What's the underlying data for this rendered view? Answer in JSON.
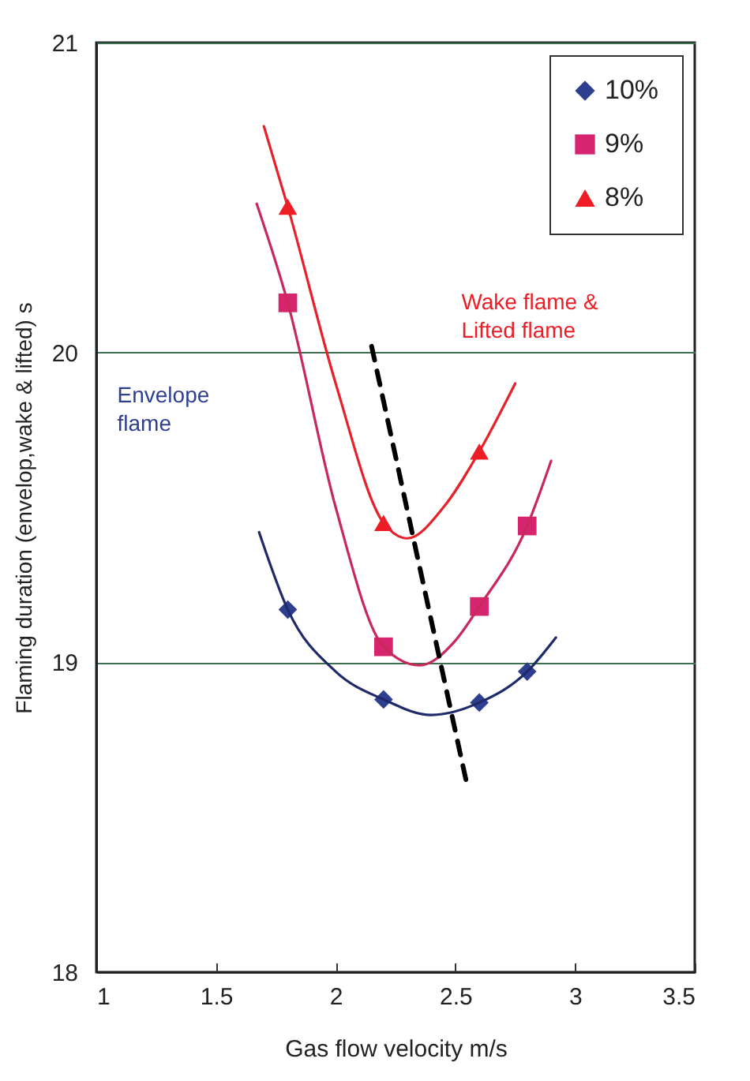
{
  "chart_data": {
    "type": "scatter",
    "xlabel": "Gas flow velocity  m/s",
    "ylabel": "Flaming duration (envelop,wake & lifted)  s",
    "xlim": [
      1,
      3.5
    ],
    "xticks": [
      1,
      1.5,
      2,
      2.5,
      3,
      3.5
    ],
    "ylim": [
      18,
      21
    ],
    "yticks": [
      18,
      19,
      20,
      21
    ],
    "grid": "y",
    "legend": "top right",
    "series": [
      {
        "name": "10%",
        "marker": "diamond",
        "color": "#2e3f8f",
        "x": [
          1.8,
          2.2,
          2.6,
          2.8
        ],
        "values": [
          19.17,
          18.88,
          18.87,
          18.97
        ]
      },
      {
        "name": "9%",
        "marker": "square",
        "color": "#d6246e",
        "x": [
          1.8,
          2.2,
          2.6,
          2.8
        ],
        "values": [
          20.16,
          19.05,
          19.18,
          19.44
        ]
      },
      {
        "name": "8%",
        "marker": "triangle",
        "color": "#ee1c24",
        "x": [
          1.8,
          2.2,
          2.6
        ],
        "values": [
          20.47,
          19.45,
          19.68
        ]
      },
      {
        "type": "line",
        "color": "#1f2a6b",
        "line_style": "solid",
        "x": [
          1.68,
          1.8,
          2.0,
          2.2,
          2.4,
          2.6,
          2.8,
          2.92
        ],
        "values": [
          19.42,
          19.17,
          18.97,
          18.88,
          18.83,
          18.87,
          18.97,
          19.08
        ]
      },
      {
        "type": "line",
        "color": "#c8285a",
        "line_style": "solid",
        "x": [
          1.67,
          1.8,
          2.0,
          2.2,
          2.35,
          2.5,
          2.6,
          2.8,
          2.9
        ],
        "values": [
          20.48,
          20.16,
          19.5,
          19.05,
          18.99,
          19.07,
          19.18,
          19.44,
          19.65
        ]
      },
      {
        "type": "line",
        "color": "#e8202a",
        "line_style": "solid",
        "x": [
          1.7,
          1.8,
          2.0,
          2.2,
          2.3,
          2.45,
          2.6,
          2.75
        ],
        "values": [
          20.73,
          20.47,
          19.9,
          19.45,
          19.4,
          19.5,
          19.68,
          19.9
        ]
      },
      {
        "type": "line",
        "color": "#000000",
        "line_style": "dashed",
        "x": [
          2.15,
          2.55
        ],
        "values": [
          20.02,
          18.6
        ]
      }
    ],
    "annotations": [
      "Envelope flame",
      "Wake flame & Lifted flame"
    ]
  }
}
